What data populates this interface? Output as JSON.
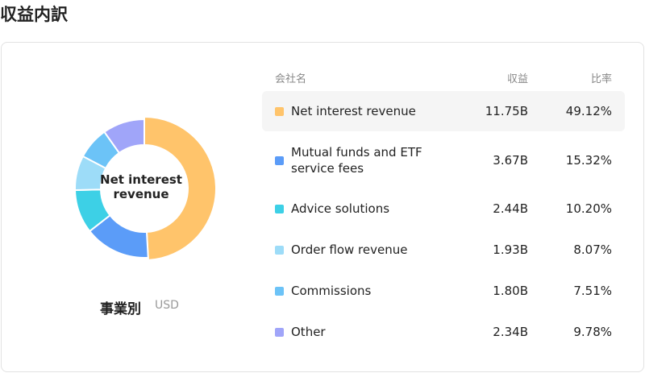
{
  "header": {
    "title": "収益内訳"
  },
  "chart_data": {
    "type": "donut",
    "subtitle": "事業別",
    "unit": "USD",
    "categories": [
      "Net interest revenue",
      "Mutual funds and ETF service fees",
      "Advice solutions",
      "Order flow revenue",
      "Commissions",
      "Other"
    ],
    "values": [
      49.12,
      15.32,
      10.2,
      8.07,
      7.51,
      9.78
    ],
    "value_labels": [
      "49.12%",
      "15.32%",
      "10.20%",
      "8.07%",
      "7.51%",
      "9.78%"
    ],
    "revenue_labels": [
      "11.75B",
      "3.67B",
      "2.44B",
      "1.93B",
      "1.80B",
      "2.34B"
    ],
    "colors": [
      "#ffc46b",
      "#5b9cf8",
      "#3dd0e6",
      "#9ddcf8",
      "#6cc3f7",
      "#a0a5f9"
    ],
    "center_label": "Net interest revenue"
  },
  "table": {
    "columns": [
      "会社名",
      "収益",
      "比率"
    ]
  }
}
